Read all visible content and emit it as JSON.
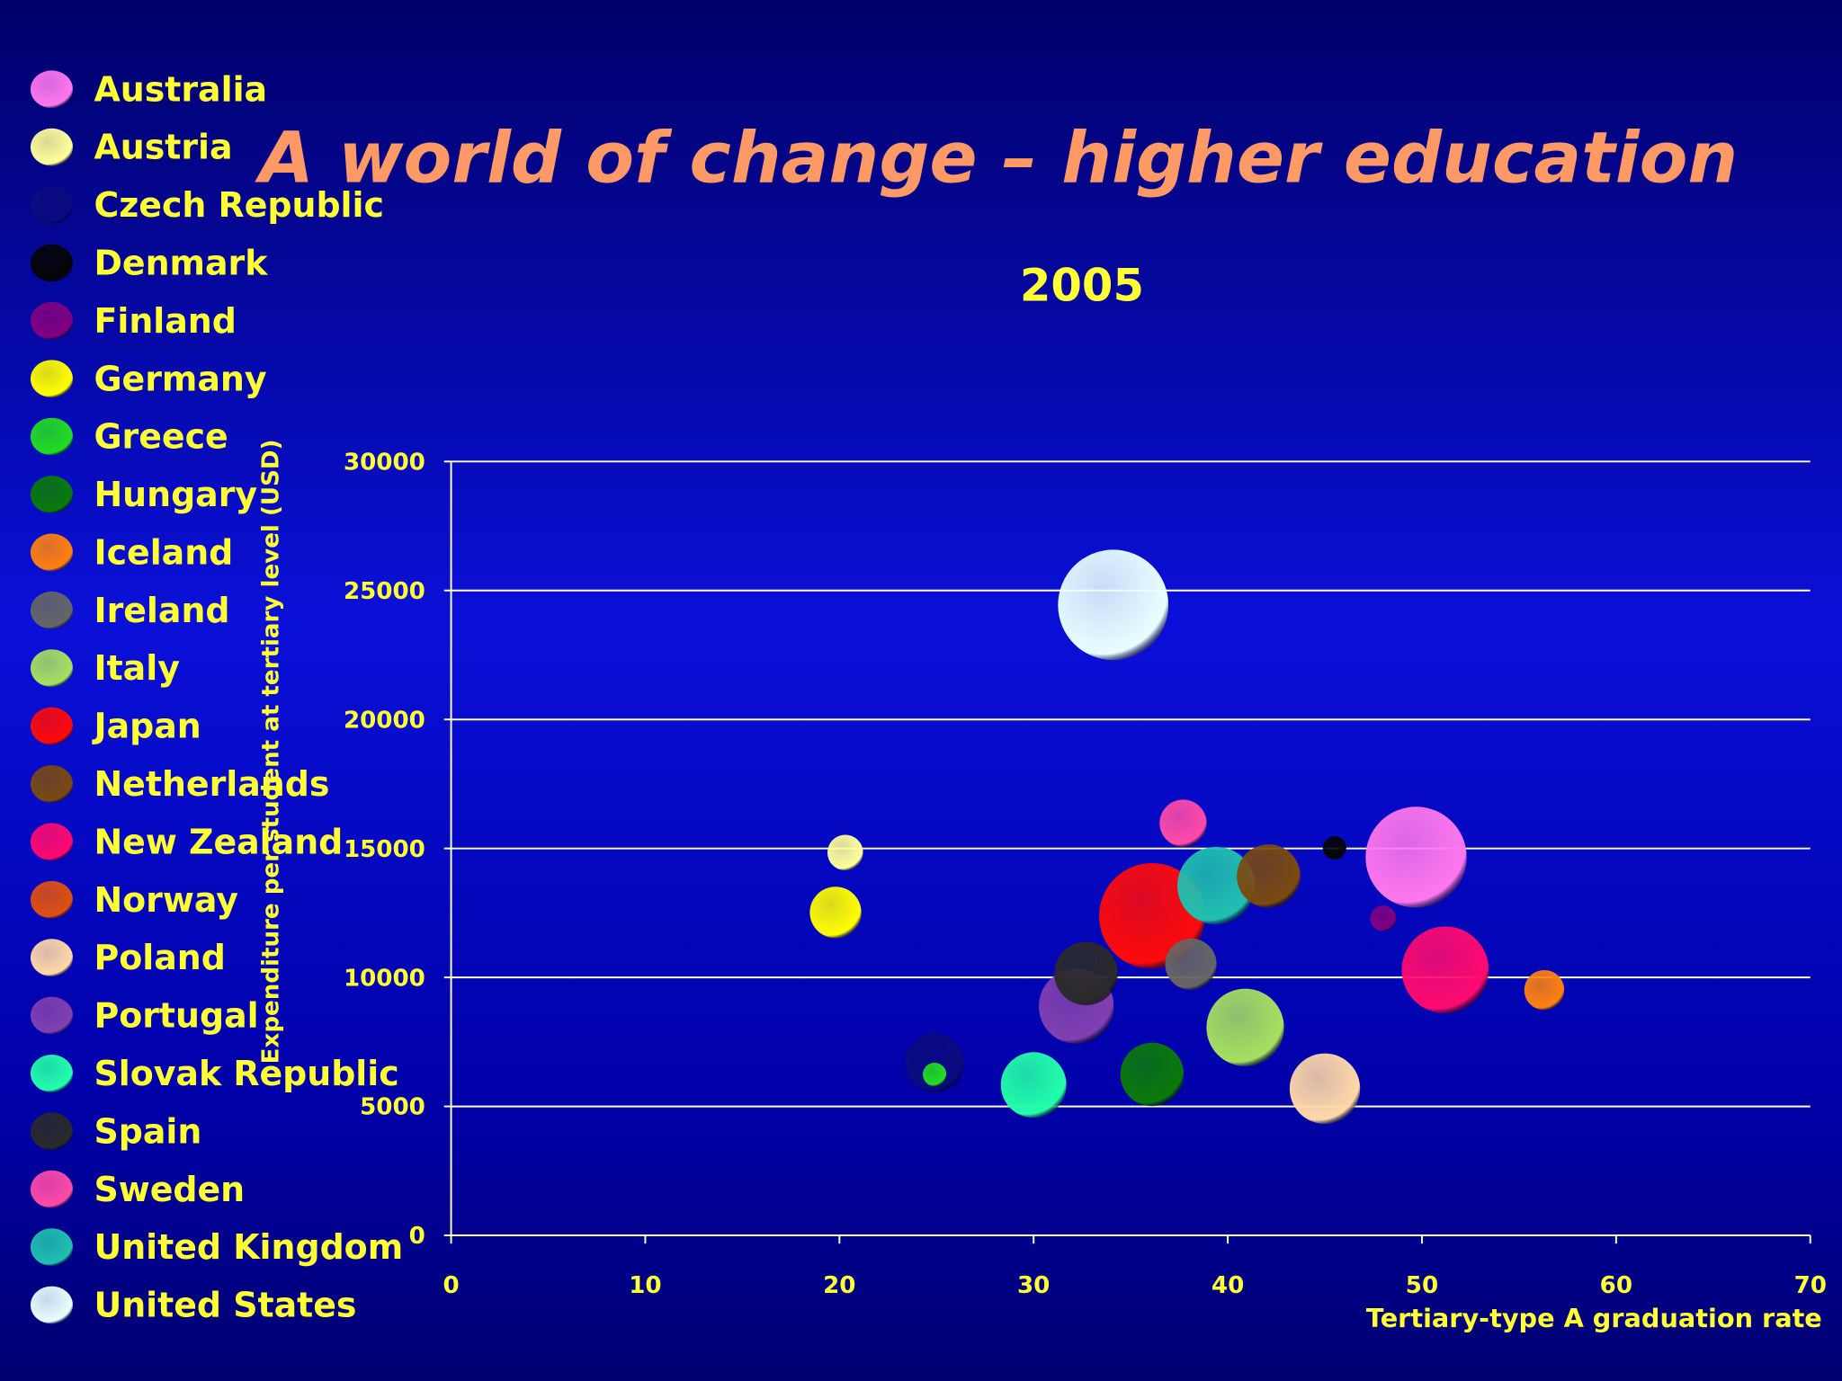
{
  "chart_data": {
    "type": "scatter",
    "subtype": "bubble",
    "title": "A world of change – higher education",
    "subtitle": "2005",
    "xlabel": "Tertiary-type A graduation rate",
    "ylabel": "Expenditure per student at tertiary level (USD)",
    "xlim": [
      0,
      70
    ],
    "ylim": [
      0,
      30000
    ],
    "xticks": [
      "0",
      "10",
      "20",
      "30",
      "40",
      "50",
      "60",
      "70"
    ],
    "yticks": [
      "0",
      "5000",
      "10000",
      "15000",
      "20000",
      "25000",
      "30000"
    ],
    "grid": "horizontal",
    "legend_position": "left",
    "series": [
      {
        "name": "Australia",
        "color": "#ff77ee",
        "x": 49.7,
        "y": 14660,
        "size": 18.5
      },
      {
        "name": "Austria",
        "color": "#ffff99",
        "x": 20.3,
        "y": 14840,
        "size": 2.3
      },
      {
        "name": "Czech Republic",
        "color": "#0a0a80",
        "x": 24.9,
        "y": 6690,
        "size": 6.3
      },
      {
        "name": "Denmark",
        "color": "#050505",
        "x": 45.5,
        "y": 15020,
        "size": 1.0
      },
      {
        "name": "Finland",
        "color": "#800080",
        "x": 48.0,
        "y": 12290,
        "size": 1.2
      },
      {
        "name": "Germany",
        "color": "#ffff00",
        "x": 19.8,
        "y": 12520,
        "size": 4.8
      },
      {
        "name": "Greece",
        "color": "#22dd22",
        "x": 24.9,
        "y": 6240,
        "size": 1.0
      },
      {
        "name": "Hungary",
        "color": "#0a7a0a",
        "x": 36.1,
        "y": 6240,
        "size": 7.3
      },
      {
        "name": "Iceland",
        "color": "#ff8010",
        "x": 56.3,
        "y": 9510,
        "size": 2.9
      },
      {
        "name": "Ireland",
        "color": "#666666",
        "x": 38.1,
        "y": 10510,
        "size": 4.8
      },
      {
        "name": "Italy",
        "color": "#a6e060",
        "x": 40.9,
        "y": 8060,
        "size": 10.9
      },
      {
        "name": "Japan",
        "color": "#ff0a0a",
        "x": 36.1,
        "y": 12380,
        "size": 20.3
      },
      {
        "name": "Netherlands",
        "color": "#7a4a10",
        "x": 42.1,
        "y": 13930,
        "size": 7.3
      },
      {
        "name": "New Zealand",
        "color": "#ff0a70",
        "x": 51.2,
        "y": 10290,
        "size": 13.7
      },
      {
        "name": "Norway",
        "color": "#e05010"
      },
      {
        "name": "Poland",
        "color": "#ffd8a8",
        "x": 45.0,
        "y": 5690,
        "size": 9.0
      },
      {
        "name": "Portugal",
        "color": "#8040b0",
        "x": 32.2,
        "y": 8880,
        "size": 10.2
      },
      {
        "name": "Slovak Republic",
        "color": "#22ffaa",
        "x": 30.0,
        "y": 5830,
        "size": 7.8
      },
      {
        "name": "Spain",
        "color": "#2a2a2a",
        "x": 32.7,
        "y": 10150,
        "size": 7.3
      },
      {
        "name": "Sweden",
        "color": "#ff4aa8",
        "x": 37.7,
        "y": 15980,
        "size": 4.0
      },
      {
        "name": "United Kingdom",
        "color": "#20c0b0",
        "x": 39.4,
        "y": 13560,
        "size": 10.9
      },
      {
        "name": "United States",
        "color": "#e8ffff",
        "x": 34.1,
        "y": 24440,
        "size": 22.1
      }
    ]
  }
}
